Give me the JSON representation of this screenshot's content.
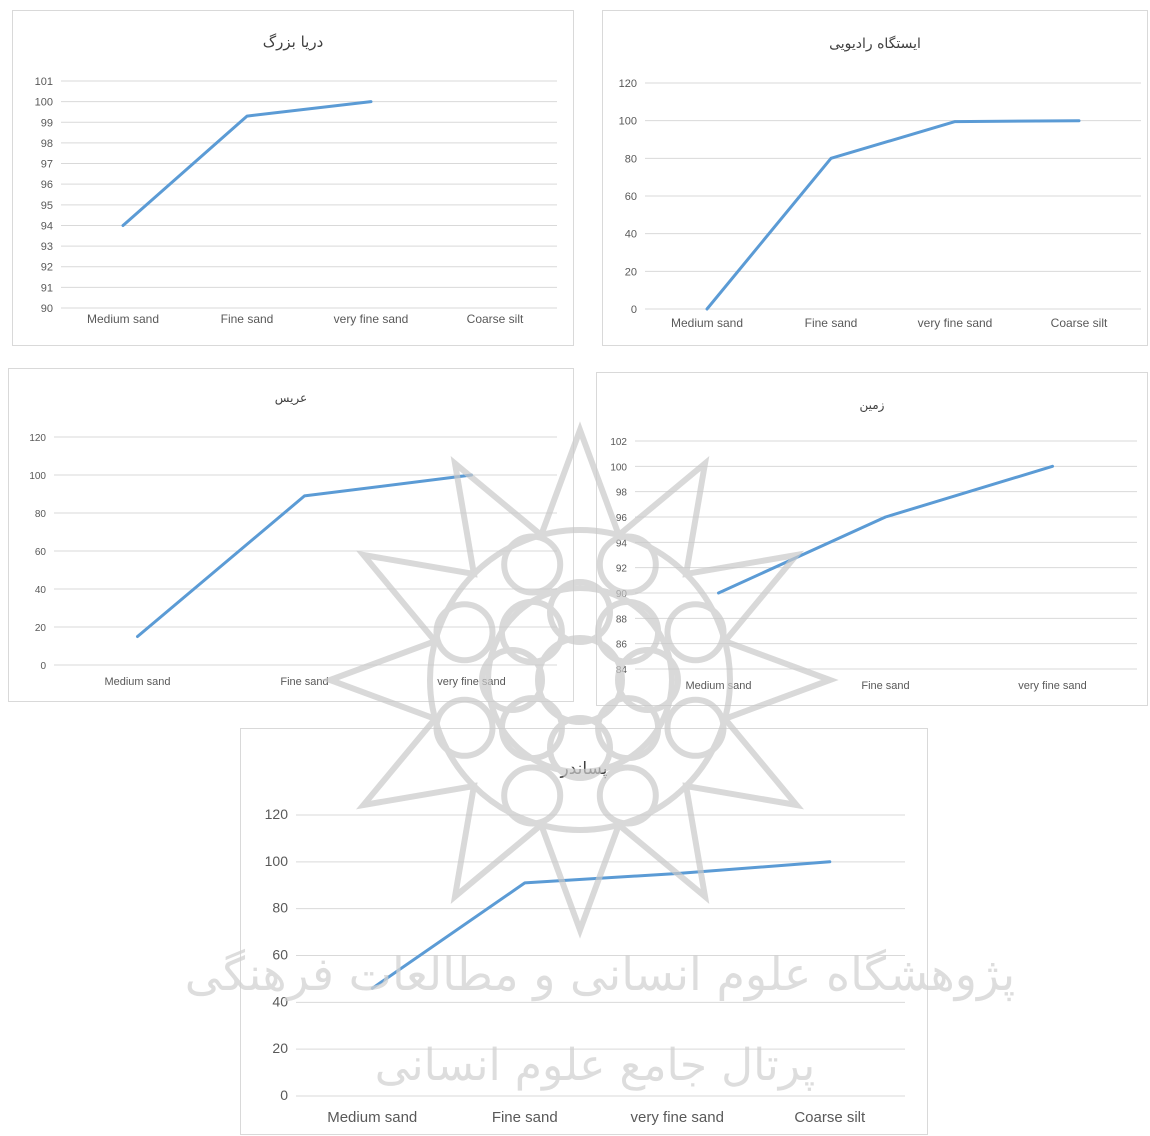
{
  "watermark": {
    "line1": "پژوهشگاه علوم انسانی و مطالعات فرهنگی",
    "line2": "پرتال جامع علوم انسانی",
    "emblem": "rosette-emblem"
  },
  "chart_data": [
    {
      "type": "line",
      "title": "دریا بزرگ",
      "categories": [
        "Medium sand",
        "Fine sand",
        "very fine  sand",
        "Coarse silt"
      ],
      "series": [
        {
          "values": [
            94,
            99.3,
            100,
            null
          ]
        }
      ],
      "ylim": [
        90,
        101
      ],
      "yticks": [
        90,
        91,
        92,
        93,
        94,
        95,
        96,
        97,
        98,
        99,
        100,
        101
      ],
      "grid": true,
      "color": "#5b9bd5"
    },
    {
      "type": "line",
      "title": "ایستگاه رادیویی",
      "categories": [
        "Medium sand",
        "Fine sand",
        "very fine  sand",
        "Coarse silt"
      ],
      "series": [
        {
          "values": [
            0,
            80,
            99.5,
            100
          ]
        }
      ],
      "ylim": [
        0,
        120
      ],
      "yticks": [
        0,
        20,
        40,
        60,
        80,
        100,
        120
      ],
      "grid": true,
      "color": "#5b9bd5"
    },
    {
      "type": "line",
      "title": "عریس",
      "categories": [
        "Medium sand",
        "Fine sand",
        "very fine sand"
      ],
      "series": [
        {
          "values": [
            15,
            89,
            100
          ]
        }
      ],
      "ylim": [
        0,
        120
      ],
      "yticks": [
        0,
        20,
        40,
        60,
        80,
        100,
        120
      ],
      "grid": true,
      "color": "#5b9bd5"
    },
    {
      "type": "line",
      "title": "زمین",
      "categories": [
        "Medium sand",
        "Fine sand",
        "very fine  sand"
      ],
      "series": [
        {
          "values": [
            90,
            96,
            100
          ]
        }
      ],
      "ylim": [
        84,
        102
      ],
      "yticks": [
        84,
        86,
        88,
        90,
        92,
        94,
        96,
        98,
        100,
        102
      ],
      "grid": true,
      "color": "#5b9bd5"
    },
    {
      "type": "line",
      "title": "پساندر",
      "categories": [
        "Medium sand",
        "Fine sand",
        "very fine  sand",
        "Coarse silt"
      ],
      "series": [
        {
          "values": [
            46,
            91,
            95,
            100
          ]
        }
      ],
      "ylim": [
        0,
        120
      ],
      "yticks": [
        0,
        20,
        40,
        60,
        80,
        100,
        120
      ],
      "grid": true,
      "color": "#5b9bd5"
    }
  ]
}
